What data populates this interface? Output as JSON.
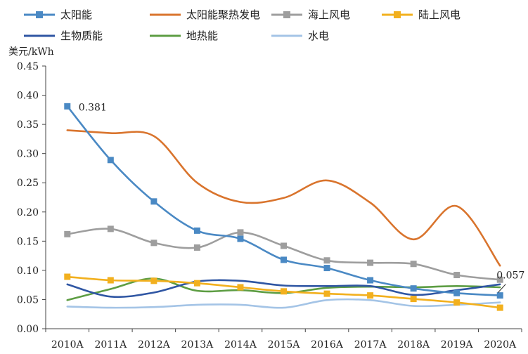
{
  "chart_data": {
    "type": "line",
    "title": "",
    "ylabel": "美元/kWh",
    "xlabel": "",
    "ylim": [
      0,
      0.45
    ],
    "yticks": [
      "0.00",
      "0.05",
      "0.10",
      "0.15",
      "0.20",
      "0.25",
      "0.30",
      "0.35",
      "0.40",
      "0.45"
    ],
    "categories": [
      "2010A",
      "2011A",
      "2012A",
      "2013A",
      "2014A",
      "2015A",
      "2016A",
      "2017A",
      "2018A",
      "2019A",
      "2020A"
    ],
    "legend_position": "top",
    "series": [
      {
        "name": "太阳能",
        "color": "#4a89c4",
        "marker": "square",
        "values": [
          0.381,
          0.289,
          0.218,
          0.168,
          0.154,
          0.118,
          0.104,
          0.083,
          0.069,
          0.061,
          0.057
        ]
      },
      {
        "name": "太阳能聚热发电",
        "color": "#d9742d",
        "marker": "none",
        "values": [
          0.34,
          0.335,
          0.33,
          0.25,
          0.217,
          0.224,
          0.254,
          0.216,
          0.153,
          0.21,
          0.108
        ]
      },
      {
        "name": "海上风电",
        "color": "#9e9e9e",
        "marker": "square",
        "values": [
          0.162,
          0.171,
          0.147,
          0.139,
          0.165,
          0.142,
          0.117,
          0.113,
          0.111,
          0.092,
          0.084
        ]
      },
      {
        "name": "陆上风电",
        "color": "#f2b01e",
        "marker": "square",
        "values": [
          0.089,
          0.083,
          0.082,
          0.078,
          0.071,
          0.064,
          0.06,
          0.057,
          0.051,
          0.045,
          0.036
        ]
      },
      {
        "name": "生物质能",
        "color": "#2f56a3",
        "marker": "none",
        "values": [
          0.076,
          0.055,
          0.062,
          0.081,
          0.082,
          0.074,
          0.073,
          0.073,
          0.058,
          0.066,
          0.076
        ]
      },
      {
        "name": "地热能",
        "color": "#5d9d43",
        "marker": "none",
        "values": [
          0.049,
          0.068,
          0.086,
          0.065,
          0.066,
          0.061,
          0.07,
          0.072,
          0.071,
          0.073,
          0.071
        ]
      },
      {
        "name": "水电",
        "color": "#a4c4e6",
        "marker": "none",
        "values": [
          0.038,
          0.036,
          0.037,
          0.041,
          0.041,
          0.036,
          0.049,
          0.049,
          0.039,
          0.041,
          0.045
        ]
      }
    ],
    "annotations": [
      {
        "text": "0.381",
        "series": "太阳能",
        "category": "2010A"
      },
      {
        "text": "0.057",
        "series": "太阳能",
        "category": "2020A"
      }
    ]
  }
}
